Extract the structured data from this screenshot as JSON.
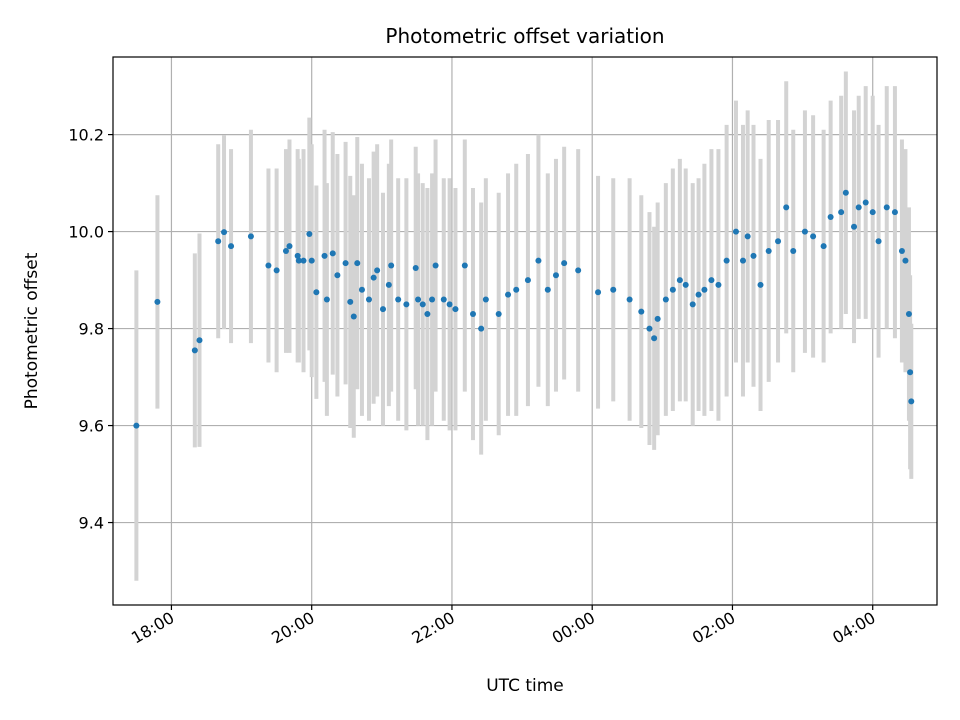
{
  "chart_data": {
    "type": "scatter",
    "title": "Photometric offset variation",
    "xlabel": "UTC time",
    "ylabel": "Photometric offset",
    "x_unit": "UTC time of day",
    "xlim": [
      "17:10",
      "04:55"
    ],
    "ylim": [
      9.23,
      10.36
    ],
    "xticks": [
      "18:00",
      "20:00",
      "22:00",
      "00:00",
      "02:00",
      "04:00"
    ],
    "yticks": [
      "9.4",
      "9.6",
      "9.8",
      "10.0",
      "10.2"
    ],
    "yticks_values": [
      9.4,
      9.6,
      9.8,
      10.0,
      10.2
    ],
    "grid": true,
    "colors": {
      "marker": "#1f77b4",
      "errorbar": "#d3d3d3",
      "grid": "#b0b0b0"
    },
    "x": [
      "17:30",
      "17:48",
      "18:20",
      "18:24",
      "18:40",
      "18:45",
      "18:51",
      "19:08",
      "19:23",
      "19:30",
      "19:38",
      "19:41",
      "19:49",
      "19:48",
      "19:58",
      "19:53",
      "20:00",
      "20:04",
      "20:11",
      "20:13",
      "20:18",
      "20:22",
      "20:29",
      "20:33",
      "20:36",
      "20:39",
      "20:43",
      "20:49",
      "20:53",
      "20:56",
      "21:01",
      "21:06",
      "21:08",
      "21:14",
      "21:21",
      "21:29",
      "21:31",
      "21:35",
      "21:39",
      "21:43",
      "21:46",
      "21:53",
      "21:58",
      "22:03",
      "22:11",
      "22:18",
      "22:25",
      "22:29",
      "22:40",
      "22:48",
      "22:55",
      "23:05",
      "23:14",
      "23:22",
      "23:29",
      "23:36",
      "23:48",
      "00:05",
      "00:18",
      "00:32",
      "00:42",
      "00:49",
      "00:53",
      "00:56",
      "01:03",
      "01:09",
      "01:15",
      "01:20",
      "01:26",
      "01:31",
      "01:36",
      "01:42",
      "01:48",
      "01:55",
      "02:03",
      "02:09",
      "02:13",
      "02:18",
      "02:24",
      "02:31",
      "02:39",
      "02:46",
      "02:52",
      "03:02",
      "03:09",
      "03:18",
      "03:24",
      "03:33",
      "03:37",
      "03:44",
      "03:48",
      "03:54",
      "04:00",
      "04:05",
      "04:12",
      "04:19",
      "04:25",
      "04:28",
      "04:31",
      "04:32",
      "04:33"
    ],
    "series": [
      {
        "y": [
          9.6,
          9.855,
          9.755,
          9.776,
          9.98,
          9.999,
          9.97,
          9.99,
          9.93,
          9.92,
          9.96,
          9.97,
          9.94,
          9.95,
          9.995,
          9.94,
          9.94,
          9.875,
          9.95,
          9.86,
          9.955,
          9.91,
          9.935,
          9.855,
          9.825,
          9.935,
          9.88,
          9.86,
          9.905,
          9.92,
          9.84,
          9.89,
          9.93,
          9.86,
          9.85,
          9.925,
          9.86,
          9.85,
          9.83,
          9.86,
          9.93,
          9.86,
          9.85,
          9.84,
          9.93,
          9.83,
          9.8,
          9.86,
          9.83,
          9.87,
          9.88,
          9.9,
          9.94,
          9.88,
          9.91,
          9.935,
          9.92,
          9.875,
          9.88,
          9.86,
          9.835,
          9.8,
          9.78,
          9.82,
          9.86,
          9.88,
          9.9,
          9.89,
          9.85,
          9.87,
          9.88,
          9.9,
          9.89,
          9.94,
          10.0,
          9.94,
          9.99,
          9.95,
          9.89,
          9.96,
          9.98,
          10.05,
          9.96,
          10.0,
          9.99,
          9.97,
          10.03,
          10.04,
          10.08,
          10.01,
          10.05,
          10.06,
          10.04,
          9.98,
          10.05,
          10.04,
          9.96,
          9.94,
          9.83,
          9.71,
          9.65
        ],
        "err": [
          0.32,
          0.22,
          0.2,
          0.22,
          0.2,
          0.2,
          0.2,
          0.22,
          0.2,
          0.21,
          0.21,
          0.22,
          0.21,
          0.22,
          0.24,
          0.23,
          0.24,
          0.22,
          0.26,
          0.24,
          0.25,
          0.25,
          0.25,
          0.26,
          0.25,
          0.26,
          0.26,
          0.25,
          0.26,
          0.26,
          0.24,
          0.25,
          0.26,
          0.25,
          0.26,
          0.25,
          0.26,
          0.25,
          0.26,
          0.26,
          0.26,
          0.25,
          0.26,
          0.25,
          0.26,
          0.26,
          0.26,
          0.25,
          0.25,
          0.25,
          0.26,
          0.26,
          0.26,
          0.24,
          0.24,
          0.24,
          0.25,
          0.24,
          0.23,
          0.25,
          0.24,
          0.24,
          0.23,
          0.24,
          0.24,
          0.25,
          0.25,
          0.24,
          0.25,
          0.24,
          0.26,
          0.27,
          0.28,
          0.28,
          0.27,
          0.28,
          0.26,
          0.27,
          0.26,
          0.27,
          0.25,
          0.26,
          0.25,
          0.25,
          0.25,
          0.24,
          0.24,
          0.24,
          0.25,
          0.24,
          0.23,
          0.24,
          0.24,
          0.24,
          0.25,
          0.26,
          0.23,
          0.23,
          0.22,
          0.2,
          0.16
        ]
      }
    ]
  }
}
